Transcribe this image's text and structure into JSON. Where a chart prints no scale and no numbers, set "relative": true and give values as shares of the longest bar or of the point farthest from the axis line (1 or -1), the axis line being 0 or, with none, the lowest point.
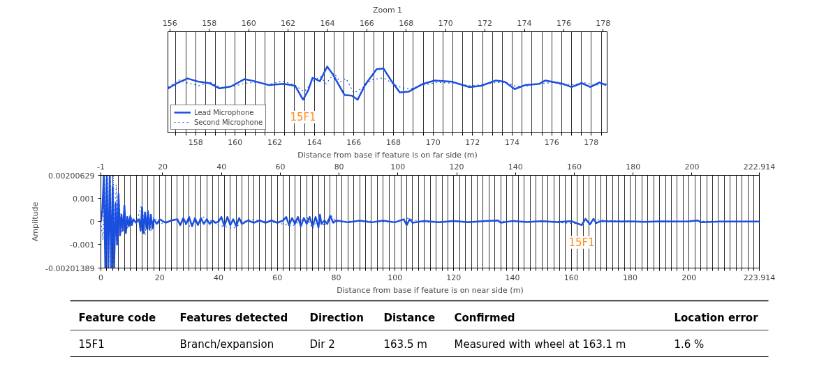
{
  "chart_data": [
    {
      "type": "line",
      "title": "Zoom 1",
      "xlabel": "Distance from base if feature is on far side (m)",
      "relative": true,
      "tick_labels": "x",
      "grid": "x",
      "legend": "bottom left",
      "xlim": [
        156.6,
        178.8
      ],
      "x2lim": [
        155.9,
        178.2
      ],
      "xticks": [
        {
          "value": 157,
          "label": null
        },
        {
          "value": 157.5,
          "label": null
        },
        158,
        {
          "value": 158.5,
          "label": null
        },
        {
          "value": 159,
          "label": null
        },
        {
          "value": 159.5,
          "label": null
        },
        160,
        {
          "value": 160.5,
          "label": null
        },
        {
          "value": 161,
          "label": null
        },
        {
          "value": 161.5,
          "label": null
        },
        162,
        {
          "value": 162.5,
          "label": null
        },
        {
          "value": 163,
          "label": null
        },
        {
          "value": 163.5,
          "label": null
        },
        164,
        {
          "value": 164.5,
          "label": null
        },
        {
          "value": 165,
          "label": null
        },
        {
          "value": 165.5,
          "label": null
        },
        166,
        {
          "value": 166.5,
          "label": null
        },
        {
          "value": 167,
          "label": null
        },
        {
          "value": 167.5,
          "label": null
        },
        168,
        {
          "value": 168.5,
          "label": null
        },
        {
          "value": 169,
          "label": null
        },
        {
          "value": 169.5,
          "label": null
        },
        170,
        {
          "value": 170.5,
          "label": null
        },
        {
          "value": 171,
          "label": null
        },
        {
          "value": 171.5,
          "label": null
        },
        172,
        {
          "value": 172.5,
          "label": null
        },
        {
          "value": 173,
          "label": null
        },
        {
          "value": 173.5,
          "label": null
        },
        174,
        {
          "value": 174.5,
          "label": null
        },
        {
          "value": 175,
          "label": null
        },
        {
          "value": 175.5,
          "label": null
        },
        176,
        {
          "value": 176.5,
          "label": null
        },
        {
          "value": 177,
          "label": null
        },
        {
          "value": 177.5,
          "label": null
        },
        178,
        {
          "value": 178.5,
          "label": null
        }
      ],
      "x2ticks": [
        156,
        158,
        160,
        162,
        164,
        166,
        168,
        170,
        172,
        174,
        176,
        178
      ],
      "annotations": [
        {
          "text": "15F1",
          "x": 163.43,
          "y": 0.5
        }
      ],
      "series": [
        {
          "name": "Lead Microphone",
          "color": "#1a4fe0",
          "line_style": "solid",
          "x": [
            156.6,
            157.07,
            157.59,
            158.18,
            158.69,
            159.21,
            159.79,
            160.46,
            160.97,
            161.71,
            162.44,
            163.03,
            163.43,
            163.69,
            163.91,
            164.28,
            164.65,
            164.94,
            165.53,
            165.9,
            166.19,
            166.56,
            167.15,
            167.5,
            167.88,
            168.32,
            168.76,
            169.5,
            170.09,
            170.97,
            171.85,
            172.44,
            173.18,
            173.62,
            174.13,
            174.65,
            175.38,
            175.68,
            176.56,
            177.0,
            177.51,
            177.96,
            178.4,
            178.76
          ],
          "values": [
            0.67,
            0.75,
            0.82,
            0.77,
            0.75,
            0.67,
            0.7,
            0.81,
            0.78,
            0.72,
            0.74,
            0.71,
            0.5,
            0.64,
            0.83,
            0.78,
            1.0,
            0.88,
            0.57,
            0.56,
            0.5,
            0.72,
            0.96,
            0.97,
            0.79,
            0.61,
            0.62,
            0.74,
            0.79,
            0.77,
            0.69,
            0.71,
            0.79,
            0.77,
            0.66,
            0.72,
            0.74,
            0.79,
            0.74,
            0.69,
            0.75,
            0.69,
            0.76,
            0.72
          ]
        },
        {
          "name": "Second Microphone",
          "color": "#1a4fe0",
          "line_style": "dotted",
          "x": [
            156.6,
            157.2,
            157.6,
            158.2,
            158.7,
            159.3,
            159.9,
            160.5,
            161.1,
            161.7,
            162.4,
            163.0,
            163.5,
            163.9,
            164.3,
            164.6,
            165.0,
            165.3,
            165.6,
            166.0,
            166.4,
            166.9,
            167.5,
            168.2,
            168.8,
            169.5,
            170.2,
            171.0,
            171.9,
            172.5,
            173.2,
            173.7,
            174.2,
            174.8,
            175.4,
            176.1,
            176.6,
            177.2,
            177.6,
            178.2,
            178.76
          ],
          "values": [
            0.69,
            0.8,
            0.75,
            0.71,
            0.77,
            0.68,
            0.7,
            0.75,
            0.76,
            0.73,
            0.78,
            0.72,
            0.62,
            0.77,
            0.85,
            0.74,
            0.9,
            0.77,
            0.82,
            0.6,
            0.67,
            0.8,
            0.83,
            0.7,
            0.66,
            0.72,
            0.76,
            0.75,
            0.71,
            0.73,
            0.76,
            0.76,
            0.7,
            0.71,
            0.74,
            0.76,
            0.72,
            0.73,
            0.76,
            0.72,
            0.74
          ]
        }
      ]
    },
    {
      "type": "line",
      "ylabel": "Amplitude",
      "xlabel": "Distance from base if feature is on near side (m)",
      "grid": "x",
      "xlim": [
        0,
        223.914
      ],
      "x2lim": [
        -1,
        222.914
      ],
      "ylim": [
        -0.00201389,
        0.00200629
      ],
      "yticks": [
        {
          "value": -0.00201389,
          "label": "-0.00201389"
        },
        {
          "value": -0.001,
          "label": "-0.001"
        },
        {
          "value": 0,
          "label": "0"
        },
        {
          "value": 0.001,
          "label": "0.001"
        },
        {
          "value": 0.00200629,
          "label": "0.00200629"
        }
      ],
      "xticks": [
        0,
        {
          "value": 2,
          "label": null
        },
        {
          "value": 4,
          "label": null
        },
        {
          "value": 6,
          "label": null
        },
        {
          "value": 8,
          "label": null
        },
        {
          "value": 10,
          "label": null
        },
        {
          "value": 12,
          "label": null
        },
        {
          "value": 14,
          "label": null
        },
        {
          "value": 16,
          "label": null
        },
        {
          "value": 18,
          "label": null
        },
        20,
        {
          "value": 22,
          "label": null
        },
        {
          "value": 24,
          "label": null
        },
        {
          "value": 26,
          "label": null
        },
        {
          "value": 28,
          "label": null
        },
        {
          "value": 30,
          "label": null
        },
        {
          "value": 32,
          "label": null
        },
        {
          "value": 34,
          "label": null
        },
        {
          "value": 36,
          "label": null
        },
        {
          "value": 38,
          "label": null
        },
        40,
        {
          "value": 42,
          "label": null
        },
        {
          "value": 44,
          "label": null
        },
        {
          "value": 46,
          "label": null
        },
        {
          "value": 48,
          "label": null
        },
        {
          "value": 50,
          "label": null
        },
        {
          "value": 52,
          "label": null
        },
        {
          "value": 54,
          "label": null
        },
        {
          "value": 56,
          "label": null
        },
        {
          "value": 58,
          "label": null
        },
        60,
        {
          "value": 62,
          "label": null
        },
        {
          "value": 64,
          "label": null
        },
        {
          "value": 66,
          "label": null
        },
        {
          "value": 68,
          "label": null
        },
        {
          "value": 70,
          "label": null
        },
        {
          "value": 72,
          "label": null
        },
        {
          "value": 74,
          "label": null
        },
        {
          "value": 76,
          "label": null
        },
        {
          "value": 78,
          "label": null
        },
        80,
        {
          "value": 82,
          "label": null
        },
        {
          "value": 84,
          "label": null
        },
        {
          "value": 86,
          "label": null
        },
        {
          "value": 88,
          "label": null
        },
        {
          "value": 90,
          "label": null
        },
        {
          "value": 92,
          "label": null
        },
        {
          "value": 94,
          "label": null
        },
        {
          "value": 96,
          "label": null
        },
        {
          "value": 98,
          "label": null
        },
        100,
        {
          "value": 102,
          "label": null
        },
        {
          "value": 104,
          "label": null
        },
        {
          "value": 106,
          "label": null
        },
        {
          "value": 108,
          "label": null
        },
        {
          "value": 110,
          "label": null
        },
        {
          "value": 112,
          "label": null
        },
        {
          "value": 114,
          "label": null
        },
        {
          "value": 116,
          "label": null
        },
        {
          "value": 118,
          "label": null
        },
        120,
        {
          "value": 122,
          "label": null
        },
        {
          "value": 124,
          "label": null
        },
        {
          "value": 126,
          "label": null
        },
        {
          "value": 128,
          "label": null
        },
        {
          "value": 130,
          "label": null
        },
        {
          "value": 132,
          "label": null
        },
        {
          "value": 134,
          "label": null
        },
        {
          "value": 136,
          "label": null
        },
        {
          "value": 138,
          "label": null
        },
        140,
        {
          "value": 142,
          "label": null
        },
        {
          "value": 144,
          "label": null
        },
        {
          "value": 146,
          "label": null
        },
        {
          "value": 148,
          "label": null
        },
        {
          "value": 150,
          "label": null
        },
        {
          "value": 152,
          "label": null
        },
        {
          "value": 154,
          "label": null
        },
        {
          "value": 156,
          "label": null
        },
        {
          "value": 158,
          "label": null
        },
        160,
        {
          "value": 162,
          "label": null
        },
        {
          "value": 164,
          "label": null
        },
        {
          "value": 166,
          "label": null
        },
        {
          "value": 168,
          "label": null
        },
        {
          "value": 170,
          "label": null
        },
        {
          "value": 172,
          "label": null
        },
        {
          "value": 174,
          "label": null
        },
        {
          "value": 176,
          "label": null
        },
        {
          "value": 178,
          "label": null
        },
        180,
        {
          "value": 182,
          "label": null
        },
        {
          "value": 184,
          "label": null
        },
        {
          "value": 186,
          "label": null
        },
        {
          "value": 188,
          "label": null
        },
        {
          "value": 190,
          "label": null
        },
        {
          "value": 192,
          "label": null
        },
        {
          "value": 194,
          "label": null
        },
        {
          "value": 196,
          "label": null
        },
        {
          "value": 198,
          "label": null
        },
        200,
        {
          "value": 202,
          "label": null
        },
        {
          "value": 204,
          "label": null
        },
        {
          "value": 206,
          "label": null
        },
        {
          "value": 208,
          "label": null
        },
        {
          "value": 210,
          "label": null
        },
        {
          "value": 212,
          "label": null
        },
        {
          "value": 214,
          "label": null
        },
        {
          "value": 216,
          "label": null
        },
        {
          "value": 218,
          "label": null
        },
        {
          "value": 220,
          "label": null
        },
        {
          "value": 222,
          "label": null
        },
        223.914
      ],
      "x2ticks": [
        -1,
        20,
        40,
        60,
        80,
        100,
        120,
        140,
        160,
        180,
        200,
        222.914
      ],
      "annotations": [
        {
          "text": "15F1",
          "x": 163.5,
          "y": -0.00015
        }
      ],
      "series": [
        {
          "color": "#1a4fe0",
          "line_style": "solid",
          "x": [
            0,
            0.5,
            1,
            1.5,
            2,
            2.5,
            3,
            3.5,
            4,
            4.5,
            5,
            5.5,
            6,
            6.5,
            7,
            7.5,
            8,
            8.5,
            9,
            9.5,
            10,
            10.5,
            11,
            12,
            13,
            13.5,
            14,
            14.5,
            15,
            15.5,
            16,
            16.5,
            17,
            17.5,
            18,
            19,
            20,
            22,
            24,
            26,
            27,
            28,
            29,
            30,
            31,
            32,
            33,
            34,
            35,
            36,
            37,
            38,
            39,
            40,
            41,
            42,
            43,
            44,
            45,
            46,
            47,
            48,
            50,
            52,
            54,
            56,
            58,
            60,
            62,
            63,
            64,
            65,
            66,
            67,
            68,
            69,
            70,
            71,
            72,
            73,
            74,
            74.5,
            75,
            76,
            77,
            78,
            79,
            80,
            84,
            88,
            92,
            96,
            100,
            103,
            104,
            105,
            106,
            110,
            115,
            120,
            125,
            130,
            135,
            136,
            140,
            145,
            150,
            155,
            160,
            163.5,
            164.8,
            166.3,
            167.5,
            168.5,
            170,
            175,
            180,
            185,
            190,
            195,
            200,
            203,
            204,
            210,
            215,
            223.914
          ],
          "values": [
            0,
            0.0005,
            0.00200629,
            -0.00201389,
            0.00200629,
            -0.00201389,
            0.00200629,
            -0.00201389,
            0.0015,
            -0.00201389,
            0.0008,
            -0.001,
            0.0012,
            -0.0006,
            0.0003,
            -0.0004,
            0.0007,
            -0.0005,
            0.0002,
            -0.0002,
            0.00025,
            -0.00015,
            0.0001,
            -5e-05,
            0.0001,
            -0.0004,
            0.0006,
            -0.0005,
            0.0004,
            -0.0003,
            0.00045,
            -0.00035,
            0.0003,
            -0.0003,
            0.0001,
            -0.0001,
            0.0001,
            -5e-05,
            5e-05,
            0.0001,
            -0.00015,
            0.00015,
            -0.0001,
            0.0002,
            -0.0002,
            0.00015,
            -0.00015,
            0.00015,
            -0.0001,
            0.0001,
            -0.0001,
            5e-05,
            -5e-05,
            0,
            0.0002,
            -0.0002,
            0.0002,
            -0.00015,
            0.0001,
            -0.0002,
            0.00015,
            -0.0001,
            5e-05,
            -5e-05,
            5e-05,
            -5e-05,
            5e-05,
            -5e-05,
            5e-05,
            0.0002,
            -0.00015,
            0.00015,
            -0.0001,
            0.0002,
            -0.0002,
            0.00015,
            -0.0001,
            0.0002,
            -0.0002,
            0.0002,
            -0.00025,
            0.0003,
            -0.0001,
            5e-05,
            -0.0001,
            0.00025,
            -5e-05,
            5e-05,
            -3e-05,
            4e-05,
            -3e-05,
            4e-05,
            -3e-05,
            0.0001,
            -0.00015,
            0.0001,
            -5e-05,
            3e-05,
            -3e-05,
            3e-05,
            -3e-05,
            2e-05,
            5e-05,
            -5e-05,
            3e-05,
            -2e-05,
            2e-05,
            -2e-05,
            2e-05,
            -0.00015,
            0.00012,
            -0.00012,
            0.00012,
            -6e-05,
            2e-05,
            0,
            1e-05,
            -1e-05,
            1e-05,
            0,
            1e-05,
            5e-05,
            -3e-05,
            0,
            0,
            0
          ]
        },
        {
          "color": "#1a4fe0",
          "line_style": "dotted",
          "x": [
            0,
            0.7,
            1.2,
            1.7,
            2.2,
            2.7,
            3.2,
            3.7,
            4.2,
            4.7,
            5.2,
            5.7,
            6.2,
            7,
            8,
            9,
            10,
            12,
            14,
            15,
            16,
            17,
            18,
            20,
            25,
            30,
            35,
            40,
            45,
            50,
            60,
            65,
            70,
            72,
            74,
            76,
            78,
            80,
            90,
            100,
            104,
            110,
            130,
            150,
            163.5,
            165,
            166.5,
            168,
            180,
            200,
            223.914
          ],
          "values": [
            0,
            -0.0008,
            0.00200629,
            -0.00201389,
            0.00200629,
            -0.00201389,
            0.00200629,
            -0.00201389,
            0.00200629,
            -0.0015,
            0.0016,
            -0.0009,
            0.0009,
            -0.0005,
            0.0006,
            -0.0003,
            0.0002,
            -0.0001,
            0.0008,
            -0.0006,
            0.0005,
            -0.0004,
            0.0002,
            -0.0001,
            0.0001,
            -0.0002,
            0.0002,
            -0.00015,
            -0.0003,
            0.0001,
            -5e-05,
            -0.0002,
            0.0002,
            -0.0003,
            0.0002,
            -0.0002,
            0.0003,
            0,
            3e-05,
            -3e-05,
            0.00015,
            -3e-05,
            2e-05,
            0,
            -0.0001,
            0.0001,
            -0.0001,
            8e-05,
            0,
            2e-05,
            0
          ]
        }
      ]
    },
    {
      "type": "other",
      "categories": [
        "Feature code",
        "Features detected",
        "Direction",
        "Distance",
        "Confirmed",
        "Location error"
      ],
      "cell_labels": [
        [
          "15F1",
          "Branch/expansion",
          "Dir 2",
          "163.5 m",
          "Measured with wheel at 163.1 m",
          "1.6 %"
        ]
      ]
    }
  ]
}
